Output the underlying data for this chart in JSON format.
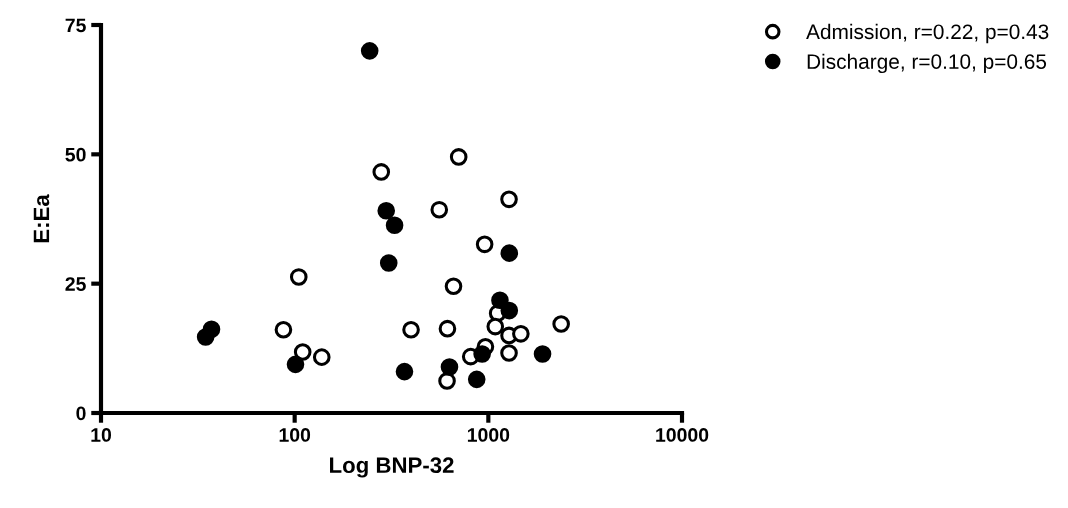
{
  "chart_data": {
    "type": "scatter",
    "xlabel": "Log BNP-32",
    "ylabel": "E:Ea",
    "log": "x",
    "xlim": [
      10,
      10000
    ],
    "xticks": [
      10,
      100,
      1000,
      10000
    ],
    "ylim": [
      0,
      75
    ],
    "yticks": [
      0,
      25,
      50,
      75
    ],
    "grid": false,
    "legend": "top right",
    "marker": "circle",
    "series": [
      {
        "name": "Admission, r=0.22, p=0.43",
        "color": "#ffffff",
        "x": [
          280,
          105,
          87.5,
          110,
          138,
          703,
          1279,
          558,
          957,
          661,
          399,
          615,
          1117,
          1086,
          1279,
          1472,
          2377,
          966,
          811,
          1279,
          612
        ],
        "values": [
          46.6,
          26.3,
          16.1,
          11.8,
          10.8,
          49.5,
          41.3,
          39.3,
          32.6,
          24.5,
          16.1,
          16.3,
          19.3,
          16.7,
          15.0,
          15.3,
          17.2,
          12.8,
          10.9,
          11.6,
          6.2
        ]
      },
      {
        "name": "Discharge, r=0.10, p=0.65",
        "color": "#000000",
        "x": [
          244,
          297,
          328,
          306,
          37.2,
          34.7,
          101,
          369,
          630,
          871,
          929,
          1148,
          1283,
          1283,
          1905
        ],
        "values": [
          70.0,
          39.1,
          36.3,
          29.0,
          16.2,
          14.7,
          9.4,
          8.0,
          8.9,
          6.5,
          11.4,
          21.8,
          19.8,
          30.9,
          11.4
        ]
      }
    ]
  }
}
